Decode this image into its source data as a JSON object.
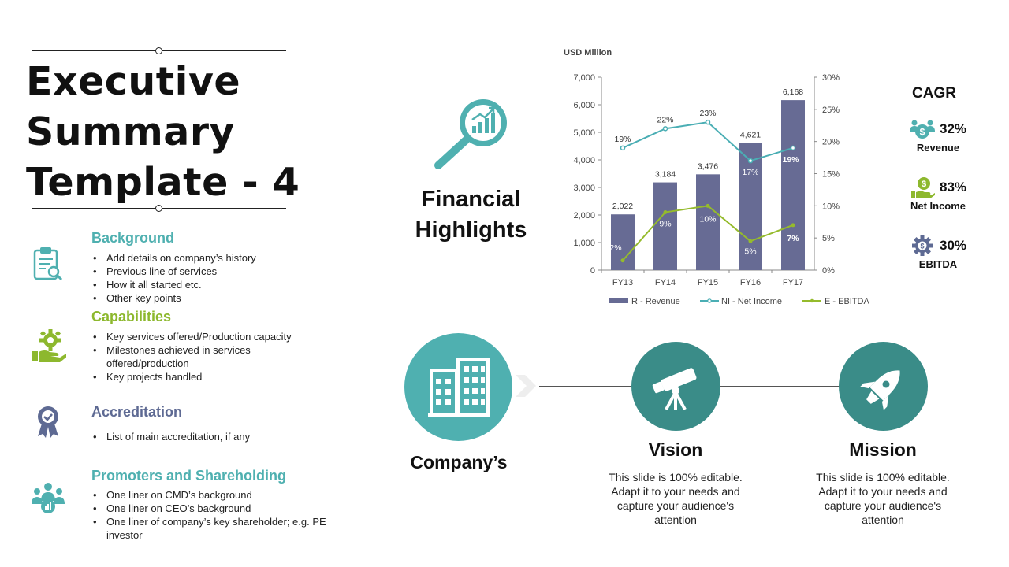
{
  "title": "Executive Summary Template - 4",
  "sections": [
    {
      "heading": "Background",
      "color": "#4fb0b0",
      "icon": "clipboard-search-icon",
      "items": [
        "Add details on company’s history",
        "Previous line of services",
        "How it all started etc.",
        "Other key points"
      ]
    },
    {
      "heading": "Capabilities",
      "color": "#8db82e",
      "icon": "gear-hand-icon",
      "items": [
        "Key services offered/Production capacity",
        "Milestones achieved in services offered/production",
        "Key projects handled"
      ]
    },
    {
      "heading": "Accreditation",
      "color": "#5e6a93",
      "icon": "award-ribbon-icon",
      "items": [
        "List of main accreditation, if any"
      ]
    },
    {
      "heading": "Promoters and Shareholding",
      "color": "#4fb0b0",
      "icon": "people-group-icon",
      "items": [
        "One liner on CMD’s background",
        "One liner on CEO’s background",
        "One liner of company’s key shareholder; e.g. PE investor"
      ]
    }
  ],
  "financial": {
    "title": "Financial Highlights",
    "icon": "magnifier-chart-icon"
  },
  "chart_data": {
    "type": "bar",
    "title": "USD Million",
    "categories": [
      "FY13",
      "FY14",
      "FY15",
      "FY16",
      "FY17"
    ],
    "ylim": [
      0,
      7000
    ],
    "y2lim": [
      0,
      30
    ],
    "yticks": [
      0,
      1000,
      2000,
      3000,
      4000,
      5000,
      6000,
      7000
    ],
    "y2ticks": [
      0,
      5,
      10,
      15,
      20,
      25,
      30
    ],
    "ytick_labels": [
      "0",
      "1,000",
      "2,000",
      "3,000",
      "4,000",
      "5,000",
      "6,000",
      "7,000"
    ],
    "y2tick_labels": [
      "0%",
      "5%",
      "10%",
      "15%",
      "20%",
      "25%",
      "30%"
    ],
    "grid": false,
    "legend": "bottom",
    "series": [
      {
        "name": "R - Revenue",
        "type": "bar",
        "axis": "left",
        "color": "#676b94",
        "values": [
          2022,
          3184,
          3476,
          4621,
          6168
        ],
        "labels": [
          "2,022",
          "3,184",
          "3,476",
          "4,621",
          "6,168"
        ]
      },
      {
        "name": "NI - Net Income",
        "type": "line",
        "axis": "right",
        "color": "#4aaeb4",
        "values": [
          19,
          22,
          23,
          17,
          19
        ],
        "labels": [
          "19%",
          "22%",
          "23%",
          "17%",
          "19%"
        ]
      },
      {
        "name": "E - EBITDA",
        "type": "line",
        "axis": "right",
        "color": "#95bb2c",
        "values": [
          1.5,
          9,
          10,
          4.5,
          7
        ],
        "labels": [
          "2%",
          "9%",
          "10%",
          "5%",
          "7%"
        ]
      }
    ]
  },
  "cagr": {
    "title": "CAGR",
    "items": [
      {
        "value": "32%",
        "label": "Revenue",
        "icon": "money-people-icon",
        "color": "#4fb0b0"
      },
      {
        "value": "83%",
        "label": "Net Income",
        "icon": "money-hand-icon",
        "color": "#8db82e"
      },
      {
        "value": "30%",
        "label": "EBITDA",
        "icon": "dollar-gear-icon",
        "color": "#5e6a93"
      }
    ]
  },
  "company": {
    "label": "Company’s",
    "icon": "buildings-icon"
  },
  "vision": {
    "label": "Vision",
    "icon": "telescope-icon",
    "desc": "This slide is 100% editable. Adapt it to your needs and capture your audience's attention"
  },
  "mission": {
    "label": "Mission",
    "icon": "rocket-icon",
    "desc": "This slide is 100% editable. Adapt it to your needs and capture your audience's attention"
  }
}
